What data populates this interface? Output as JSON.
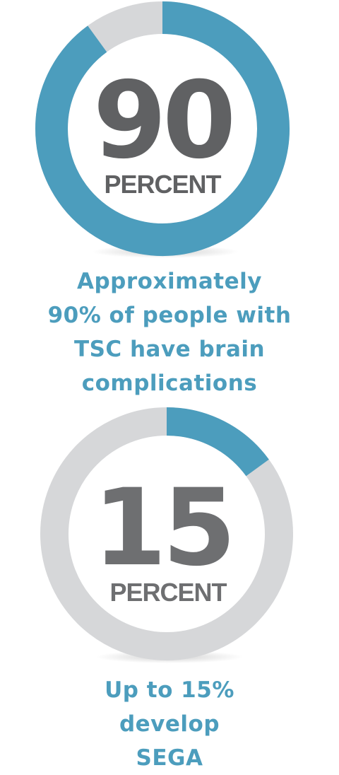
{
  "colors": {
    "accent": "#4c9dbd",
    "track": "#d6d7d9",
    "number_dark": "#606163",
    "number_mid": "#6e6f71",
    "caption": "#4c9dbd"
  },
  "chart_data": [
    {
      "type": "pie",
      "categories": [
        "90%",
        "remainder"
      ],
      "values": [
        90,
        10
      ],
      "center_value": "90",
      "center_label": "PERCENT",
      "caption_lines": [
        "Approximately",
        "90% of people with",
        "TSC have brain",
        "complications"
      ]
    },
    {
      "type": "pie",
      "categories": [
        "15%",
        "remainder"
      ],
      "values": [
        15,
        85
      ],
      "center_value": "15",
      "center_label": "PERCENT",
      "caption_lines": [
        "Up to 15%",
        "develop",
        "SEGA"
      ]
    }
  ]
}
